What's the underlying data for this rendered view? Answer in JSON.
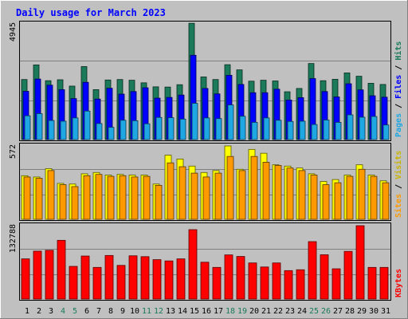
{
  "chart_data": [
    {
      "type": "bar",
      "title": "Daily usage for March 2023",
      "ylabel": "Pages / Files / Hits",
      "ymax_label": "4945",
      "categories": [
        "1",
        "2",
        "3",
        "4",
        "5",
        "6",
        "7",
        "8",
        "9",
        "10",
        "11",
        "12",
        "13",
        "14",
        "15",
        "16",
        "17",
        "18",
        "19",
        "20",
        "21",
        "22",
        "23",
        "24",
        "25",
        "26",
        "27",
        "28",
        "29",
        "30",
        "31"
      ],
      "weekend_days": [
        "4",
        "5",
        "11",
        "12",
        "18",
        "19",
        "25",
        "26"
      ],
      "ylim": [
        0,
        4945
      ],
      "series": [
        {
          "name": "Hits",
          "color": "#1a7a5a",
          "values": [
            2550,
            3170,
            2500,
            2540,
            2270,
            3100,
            2120,
            2530,
            2550,
            2520,
            2410,
            2240,
            2230,
            2330,
            4940,
            2660,
            2550,
            3180,
            2960,
            2480,
            2520,
            2490,
            2030,
            2170,
            3230,
            2500,
            2560,
            2830,
            2690,
            2390,
            2340
          ]
        },
        {
          "name": "Files",
          "color": "#0000ff",
          "values": [
            2050,
            2570,
            2310,
            2120,
            1740,
            2430,
            1720,
            2180,
            1930,
            2040,
            2200,
            1760,
            1790,
            1890,
            3580,
            2170,
            1940,
            2730,
            2340,
            1990,
            1990,
            2140,
            1680,
            1780,
            2590,
            2040,
            1810,
            2370,
            2110,
            1860,
            1800
          ]
        },
        {
          "name": "Pages",
          "color": "#1ea7e3",
          "values": [
            1010,
            1100,
            810,
            780,
            920,
            1210,
            680,
            520,
            820,
            800,
            670,
            940,
            930,
            870,
            1540,
            920,
            890,
            1470,
            990,
            730,
            920,
            820,
            770,
            780,
            640,
            830,
            730,
            1050,
            950,
            980,
            620
          ]
        }
      ]
    },
    {
      "type": "bar",
      "ylabel": "Sites / Visits",
      "ymax_label": "572",
      "categories": [
        "1",
        "2",
        "3",
        "4",
        "5",
        "6",
        "7",
        "8",
        "9",
        "10",
        "11",
        "12",
        "13",
        "14",
        "15",
        "16",
        "17",
        "18",
        "19",
        "20",
        "21",
        "22",
        "23",
        "24",
        "25",
        "26",
        "27",
        "28",
        "29",
        "30",
        "31"
      ],
      "ylim": [
        0,
        572
      ],
      "series": [
        {
          "name": "Visits",
          "color": "#ffff00",
          "values": [
            340,
            330,
            395,
            280,
            275,
            355,
            365,
            345,
            350,
            345,
            345,
            275,
            500,
            470,
            415,
            365,
            380,
            572,
            390,
            545,
            515,
            425,
            415,
            400,
            355,
            295,
            310,
            345,
            425,
            345,
            300
          ]
        },
        {
          "name": "Sites",
          "color": "#ff9900",
          "values": [
            330,
            320,
            380,
            270,
            255,
            340,
            350,
            335,
            340,
            330,
            335,
            265,
            440,
            410,
            360,
            330,
            360,
            490,
            380,
            490,
            445,
            420,
            400,
            380,
            345,
            270,
            285,
            335,
            390,
            335,
            285
          ]
        }
      ]
    },
    {
      "type": "bar",
      "ylabel": "KBytes",
      "ymax_label": "132788",
      "categories": [
        "1",
        "2",
        "3",
        "4",
        "5",
        "6",
        "7",
        "8",
        "9",
        "10",
        "11",
        "12",
        "13",
        "14",
        "15",
        "16",
        "17",
        "18",
        "19",
        "20",
        "21",
        "22",
        "23",
        "24",
        "25",
        "26",
        "27",
        "28",
        "29",
        "30",
        "31"
      ],
      "ylim": [
        0,
        132788
      ],
      "series": [
        {
          "name": "KBytes",
          "color": "#ff0000",
          "values": [
            72740,
            86690,
            88240,
            106320,
            59150,
            77880,
            57290,
            78900,
            60940,
            78300,
            76750,
            71330,
            69000,
            72740,
            125620,
            66680,
            57290,
            79900,
            77100,
            65380,
            58050,
            65380,
            51500,
            53050,
            103930,
            80200,
            54780,
            86300,
            132788,
            57290,
            57290
          ]
        }
      ]
    }
  ]
}
